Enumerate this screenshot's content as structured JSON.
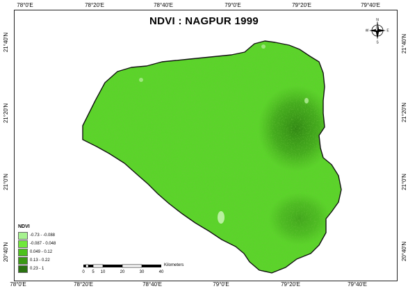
{
  "title": "NDVI : NAGPUR 1999",
  "graticule": {
    "longitudes_top": [
      "78°0'E",
      "78°20'E",
      "78°40'E",
      "79°0'E",
      "79°20'E",
      "79°40'E"
    ],
    "longitudes_bottom": [
      "78°0'E",
      "78°20'E",
      "78°40'E",
      "79°0'E",
      "79°20'E",
      "79°40'E"
    ],
    "latitudes_left": [
      "21°40'N",
      "21°20'N",
      "21°0'N",
      "20°40'N"
    ],
    "latitudes_right": [
      "21°40'N",
      "21°20'N",
      "21°0'N",
      "20°40'N"
    ]
  },
  "legend": {
    "title": "NDVI",
    "items": [
      {
        "label": "-0.73 - -0.088",
        "color": "#a6f28f"
      },
      {
        "label": "-0.087 - 0.048",
        "color": "#6fe83a"
      },
      {
        "label": "0.049 - 0.12",
        "color": "#4cc21c"
      },
      {
        "label": "0.13 - 0.22",
        "color": "#3a9a14"
      },
      {
        "label": "0.23 - 1",
        "color": "#2a7210"
      }
    ]
  },
  "scalebar": {
    "labels": [
      "0",
      "5",
      "10",
      "20",
      "30",
      "40"
    ],
    "unit": "Kilometers"
  },
  "north_arrow": {
    "icon": "compass-rose-icon",
    "directions": {
      "n": "N",
      "s": "S",
      "e": "E",
      "w": "W"
    }
  },
  "colors": {
    "district_fill": "#5bd42a",
    "dense_vegetation": "#2f8a12",
    "bright_patch": "#b9f0a0",
    "boundary": "#111111"
  }
}
